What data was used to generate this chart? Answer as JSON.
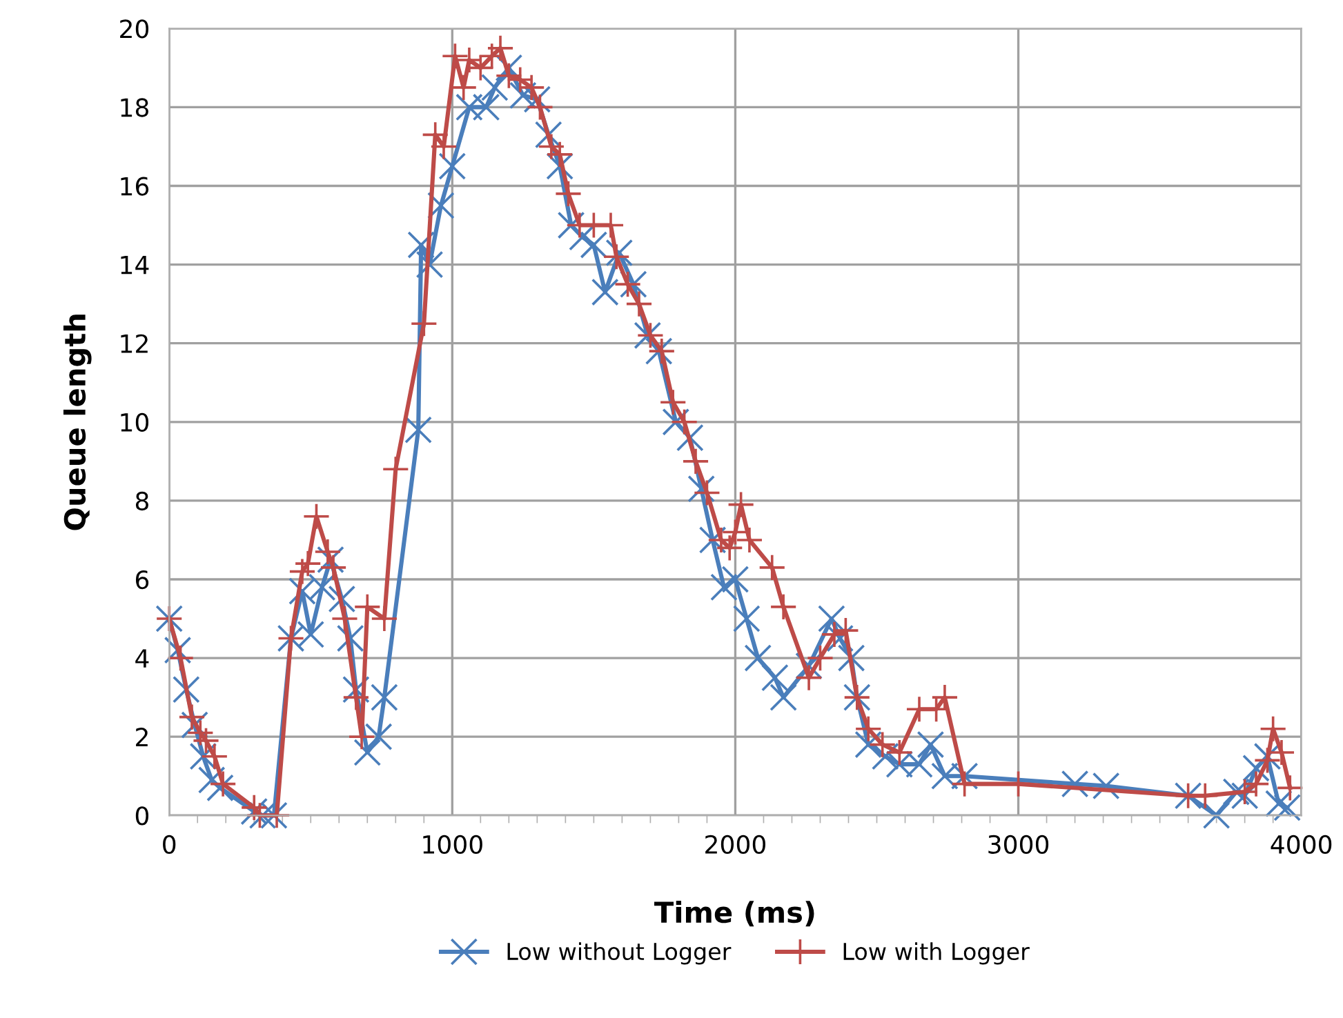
{
  "chart_data": {
    "type": "line",
    "xlabel": "Time (ms)",
    "ylabel": "Queue length",
    "xlim": [
      0,
      4000
    ],
    "xticks": [
      0,
      1000,
      2000,
      3000,
      4000
    ],
    "ylim": [
      0,
      20
    ],
    "yticks": [
      0,
      2,
      4,
      6,
      8,
      10,
      12,
      14,
      16,
      18,
      20
    ],
    "grid": true,
    "legend": "bottom",
    "line_style": "solid",
    "series": [
      {
        "name": "Low without Logger",
        "color": "#4a7ebb",
        "marker": "cross",
        "x": [
          0,
          30,
          60,
          90,
          120,
          150,
          180,
          300,
          330,
          370,
          430,
          470,
          500,
          540,
          570,
          610,
          640,
          660,
          700,
          740,
          760,
          880,
          890,
          920,
          960,
          1000,
          1060,
          1120,
          1150,
          1200,
          1250,
          1300,
          1340,
          1380,
          1420,
          1460,
          1500,
          1540,
          1590,
          1640,
          1690,
          1730,
          1790,
          1840,
          1880,
          1920,
          1960,
          2000,
          2040,
          2080,
          2140,
          2170,
          2260,
          2340,
          2370,
          2410,
          2430,
          2470,
          2530,
          2580,
          2650,
          2690,
          2740,
          2810,
          3200,
          3310,
          3600,
          3700,
          3770,
          3800,
          3840,
          3880,
          3920,
          3950
        ],
        "values": [
          5,
          4.2,
          3.2,
          2.3,
          1.5,
          0.9,
          0.7,
          0.1,
          0,
          0,
          4.5,
          5.7,
          4.6,
          5.8,
          6.5,
          5.5,
          4.5,
          3.2,
          1.6,
          2,
          3,
          9.8,
          14.5,
          14,
          15.5,
          16.5,
          18,
          18,
          18.5,
          19,
          18.3,
          18.2,
          17.3,
          16.5,
          15,
          14.7,
          14.5,
          13.3,
          14.3,
          13.5,
          12.2,
          11.8,
          10,
          9.6,
          8.3,
          7,
          5.8,
          6,
          5,
          4,
          3.5,
          3,
          3.8,
          5,
          4.5,
          4,
          3,
          1.8,
          1.5,
          1.3,
          1.3,
          1.8,
          1,
          1,
          0.8,
          0.75,
          0.5,
          0,
          0.6,
          0.5,
          1.2,
          1.5,
          0.3,
          0.2
        ]
      },
      {
        "name": "Low with Logger",
        "color": "#be4b48",
        "marker": "plus",
        "x": [
          0,
          40,
          80,
          110,
          130,
          160,
          190,
          300,
          320,
          380,
          430,
          470,
          490,
          520,
          560,
          580,
          620,
          660,
          680,
          700,
          760,
          800,
          900,
          940,
          970,
          1010,
          1040,
          1060,
          1100,
          1140,
          1170,
          1200,
          1240,
          1280,
          1310,
          1350,
          1380,
          1410,
          1450,
          1500,
          1560,
          1580,
          1620,
          1660,
          1700,
          1740,
          1780,
          1820,
          1860,
          1900,
          1950,
          1980,
          2000,
          2020,
          2050,
          2130,
          2170,
          2260,
          2300,
          2350,
          2390,
          2430,
          2470,
          2520,
          2580,
          2650,
          2710,
          2740,
          2810,
          3000,
          3600,
          3660,
          3800,
          3840,
          3880,
          3900,
          3930,
          3960
        ],
        "values": [
          5,
          4,
          2.5,
          2.1,
          1.9,
          1.5,
          0.8,
          0.2,
          0,
          0,
          4.5,
          6.2,
          6.4,
          7.6,
          6.7,
          6.3,
          5,
          3,
          2,
          5.3,
          5,
          8.8,
          12.5,
          17.3,
          17,
          19.3,
          18.5,
          19.2,
          19,
          19.3,
          19.5,
          18.8,
          18.7,
          18.5,
          18,
          17,
          16.8,
          15.8,
          15,
          15,
          15,
          14.2,
          13.5,
          13,
          12.2,
          11.8,
          10.5,
          10,
          9,
          8.2,
          7,
          6.8,
          7.2,
          7.9,
          7,
          6.3,
          5.3,
          3.5,
          4,
          4.6,
          4.7,
          3,
          2.2,
          1.8,
          1.6,
          2.7,
          2.7,
          3,
          0.8,
          0.8,
          0.5,
          0.5,
          0.6,
          0.8,
          1.4,
          2.2,
          1.6,
          0.7
        ]
      }
    ]
  }
}
